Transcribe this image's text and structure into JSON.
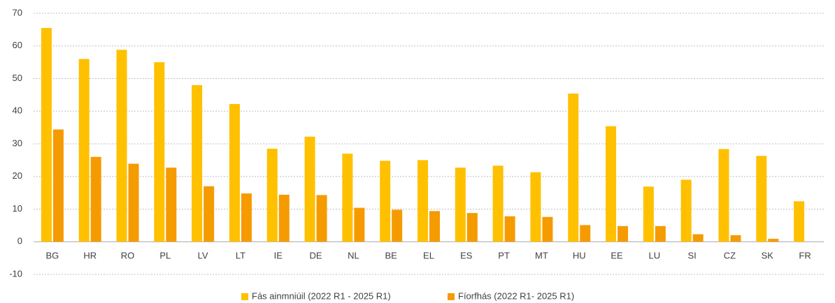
{
  "chart_data": {
    "type": "bar",
    "categories": [
      "BG",
      "HR",
      "RO",
      "PL",
      "LV",
      "LT",
      "IE",
      "DE",
      "NL",
      "BE",
      "EL",
      "ES",
      "PT",
      "MT",
      "HU",
      "EE",
      "LU",
      "SI",
      "CZ",
      "SK",
      "FR"
    ],
    "series": [
      {
        "name": "Fás ainmniúil (2022 R1 - 2025 R1)",
        "color": "#FFC000",
        "values": [
          65.5,
          56,
          58.8,
          55,
          48,
          42.2,
          28.5,
          32.2,
          27,
          24.8,
          25,
          22.7,
          23.3,
          21.3,
          45.4,
          35.4,
          16.9,
          19,
          28.4,
          26.3,
          12.4
        ]
      },
      {
        "name": "Fíorfhás (2022 R1- 2025 R1)",
        "color": "#F59B00",
        "values": [
          34.4,
          26,
          23.9,
          22.7,
          17,
          14.8,
          14.4,
          14.3,
          10.4,
          9.8,
          9.4,
          8.8,
          7.8,
          7.6,
          5.1,
          4.8,
          4.8,
          2.3,
          2,
          0.9,
          null
        ]
      }
    ],
    "ylim": [
      -10,
      70
    ],
    "yticks": [
      -10,
      0,
      10,
      20,
      30,
      40,
      50,
      60,
      70
    ],
    "grid": true,
    "legend": "bottom"
  }
}
